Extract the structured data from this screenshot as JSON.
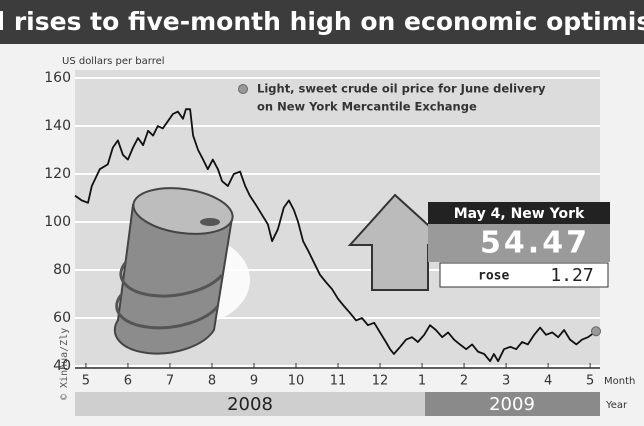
{
  "chart_data": {
    "type": "line",
    "title": "Oil rises to five-month high on economic optimism",
    "y_label": "US dollars per barrel",
    "x_label": "Month",
    "year_label": "Year",
    "years": [
      "2008",
      "2009"
    ],
    "legend": [
      "Light, sweet crude oil price for June delivery",
      "on New York Mercantile Exchange"
    ],
    "annotation": {
      "title": "May 4, New York",
      "value": "54.47",
      "change_label": "rose",
      "change": "1.27"
    },
    "credit": "© Xinhua/Zly",
    "x": [
      4.74,
      4.9,
      5.05,
      5.14,
      5.33,
      5.52,
      5.64,
      5.76,
      5.88,
      6.0,
      6.12,
      6.24,
      6.36,
      6.48,
      6.6,
      6.71,
      6.83,
      6.95,
      7.07,
      7.19,
      7.31,
      7.38,
      7.48,
      7.55,
      7.67,
      7.79,
      7.9,
      8.02,
      8.14,
      8.24,
      8.38,
      8.52,
      8.67,
      8.79,
      8.9,
      9.05,
      9.19,
      9.33,
      9.43,
      9.57,
      9.71,
      9.83,
      9.95,
      10.05,
      10.17,
      10.29,
      10.43,
      10.57,
      10.71,
      10.86,
      11.0,
      11.14,
      11.29,
      11.43,
      11.57,
      11.71,
      11.86,
      12.0,
      12.14,
      12.24,
      12.33,
      12.48,
      12.62,
      12.76,
      12.9,
      13.05,
      13.19,
      13.33,
      13.48,
      13.62,
      13.76,
      13.9,
      14.05,
      14.19,
      14.33,
      14.48,
      14.62,
      14.71,
      14.81,
      14.95,
      15.1,
      15.24,
      15.38,
      15.52,
      15.67,
      15.81,
      15.95,
      16.1,
      16.24,
      16.38,
      16.52,
      16.67,
      16.81,
      16.95,
      17.14
    ],
    "series": [
      {
        "color": "#111111",
        "marker_color": "#999999",
        "values": [
          111,
          109,
          108,
          115,
          122,
          124,
          131,
          134,
          128,
          126,
          131,
          135,
          132,
          138,
          136,
          140,
          139,
          142,
          145,
          146,
          143,
          147,
          147,
          136,
          130,
          126,
          122,
          126,
          122,
          117,
          115,
          120,
          121,
          115,
          111,
          107,
          103,
          99,
          92,
          97,
          106,
          109,
          105,
          100,
          92,
          88,
          83,
          78,
          75,
          72,
          68,
          65,
          62,
          59,
          60,
          57,
          58,
          54,
          50,
          47,
          45,
          48,
          51,
          52,
          50,
          53,
          57,
          55,
          52,
          54,
          51,
          49,
          47,
          49,
          46,
          45,
          42,
          45,
          42,
          47,
          48,
          47,
          50,
          49,
          53,
          56,
          53,
          54,
          52,
          55,
          51,
          49,
          51,
          52,
          54.47
        ]
      }
    ],
    "xlim": [
      4.74,
      17.14
    ],
    "xticks": [
      5,
      6,
      7,
      8,
      9,
      10,
      11,
      12,
      {
        "value": 13,
        "label": "1"
      },
      {
        "value": 14,
        "label": "2"
      },
      {
        "value": 15,
        "label": "3"
      },
      {
        "value": 16,
        "label": "4"
      },
      {
        "value": 17,
        "label": "5"
      }
    ],
    "ylim": [
      40,
      160
    ],
    "yticks": [
      40,
      60,
      80,
      100,
      120,
      140,
      160
    ],
    "grid": true
  }
}
